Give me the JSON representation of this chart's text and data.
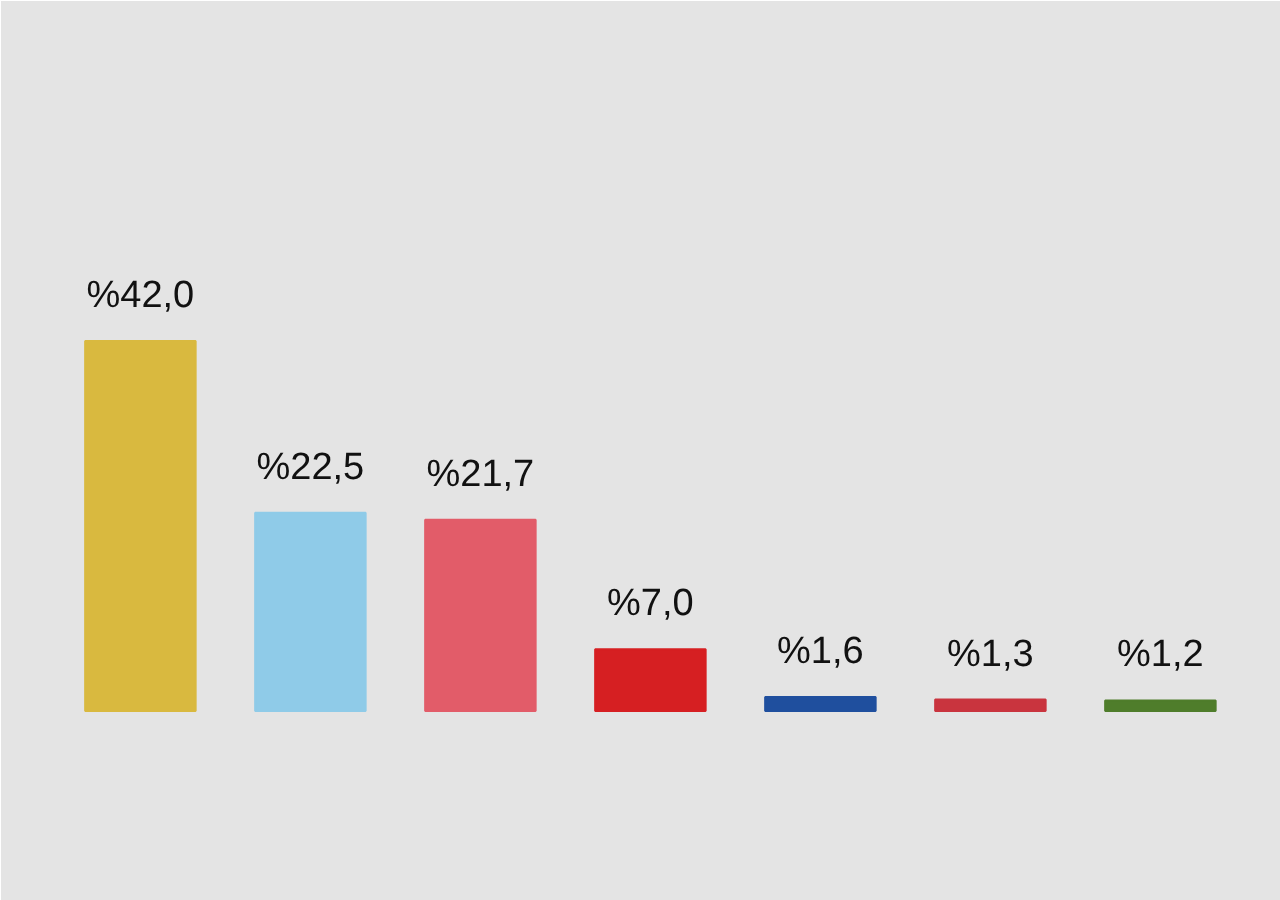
{
  "chart_data": {
    "type": "bar",
    "categories": [
      null,
      null,
      null,
      null,
      null,
      null,
      null
    ],
    "values": [
      42.0,
      22.5,
      21.7,
      7.0,
      1.6,
      1.3,
      1.2
    ],
    "colors": [
      "#d9b93f",
      "#8fcbe8",
      "#e25c69",
      "#d61f22",
      "#1f4f9e",
      "#c9343e",
      "#4f7d2b"
    ],
    "value_labels": [
      "%42,0",
      "%22,5",
      "%21,7",
      "%7,0",
      "%1,6",
      "%1,3",
      "%1,2"
    ],
    "tick_labels": false
  }
}
